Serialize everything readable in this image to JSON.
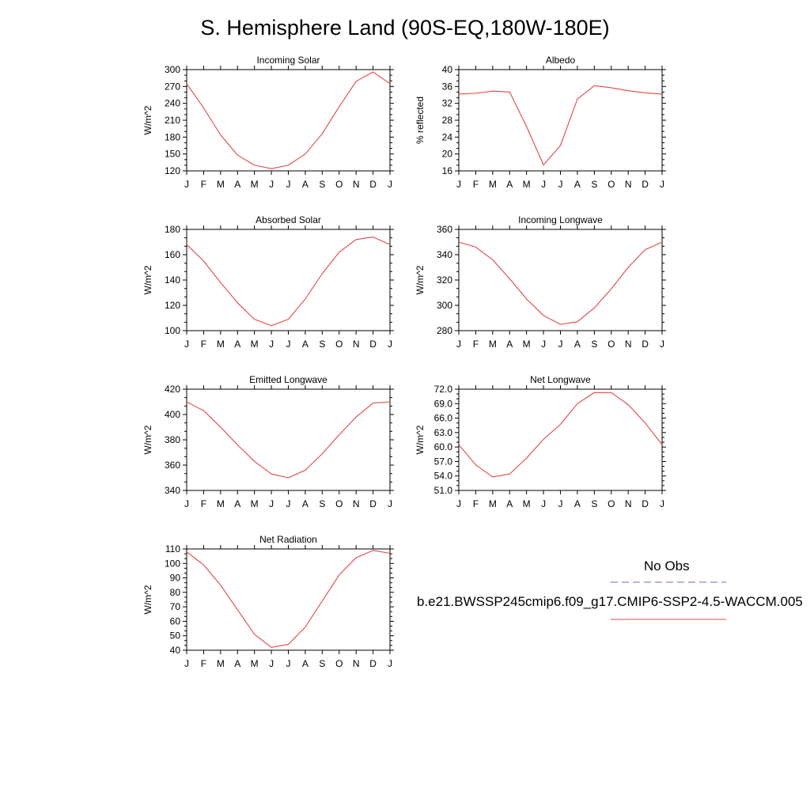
{
  "page": {
    "title": "S. Hemisphere Land (90S-EQ,180W-180E)"
  },
  "legend": {
    "obs_label": "No Obs",
    "obs_color": "#6b6bd8",
    "model_label": "b.e21.BWSSP245cmip6.f09_g17.CMIP6-SSP2-4.5-WACCM.005",
    "model_color": "#e04848"
  },
  "chart_data": [
    {
      "type": "line",
      "title": "Incoming Solar",
      "ylabel": "W/m^2",
      "x": [
        "J",
        "F",
        "M",
        "A",
        "M",
        "J",
        "J",
        "A",
        "S",
        "O",
        "N",
        "D",
        "J"
      ],
      "ylim": [
        120,
        300
      ],
      "yticks": [
        "120",
        "150",
        "180",
        "210",
        "240",
        "270",
        "300"
      ],
      "series": [
        {
          "values": [
            275,
            232,
            184,
            148,
            130,
            124,
            130,
            150,
            186,
            234,
            279,
            296,
            275
          ]
        }
      ]
    },
    {
      "type": "line",
      "title": "Albedo",
      "ylabel": "% reflected",
      "x": [
        "J",
        "F",
        "M",
        "A",
        "M",
        "J",
        "J",
        "A",
        "S",
        "O",
        "N",
        "D",
        "J"
      ],
      "ylim": [
        16,
        40
      ],
      "yticks": [
        "16",
        "20",
        "24",
        "28",
        "32",
        "36",
        "40"
      ],
      "series": [
        {
          "values": [
            34.2,
            34.4,
            34.9,
            34.7,
            26.5,
            17.4,
            22.0,
            33.0,
            36.2,
            35.7,
            35.0,
            34.5,
            34.2
          ]
        }
      ]
    },
    {
      "type": "line",
      "title": "Absorbed Solar",
      "ylabel": "W/m^2",
      "x": [
        "J",
        "F",
        "M",
        "A",
        "M",
        "J",
        "J",
        "A",
        "S",
        "O",
        "N",
        "D",
        "J"
      ],
      "ylim": [
        100,
        180
      ],
      "yticks": [
        "100",
        "120",
        "140",
        "160",
        "180"
      ],
      "series": [
        {
          "values": [
            168,
            155,
            138,
            122,
            109,
            104,
            109,
            125,
            145,
            162,
            172,
            174,
            168
          ]
        }
      ]
    },
    {
      "type": "line",
      "title": "Incoming Longwave",
      "ylabel": "W/m^2",
      "x": [
        "J",
        "F",
        "M",
        "A",
        "M",
        "J",
        "J",
        "A",
        "S",
        "O",
        "N",
        "D",
        "J"
      ],
      "ylim": [
        280,
        360
      ],
      "yticks": [
        "280",
        "300",
        "320",
        "340",
        "360"
      ],
      "series": [
        {
          "values": [
            350,
            346,
            336,
            321,
            305,
            292,
            285,
            287,
            298,
            313,
            330,
            344,
            350
          ]
        }
      ]
    },
    {
      "type": "line",
      "title": "Emitted Longwave",
      "ylabel": "W/m^2",
      "x": [
        "J",
        "F",
        "M",
        "A",
        "M",
        "J",
        "J",
        "A",
        "S",
        "O",
        "N",
        "D",
        "J"
      ],
      "ylim": [
        340,
        420
      ],
      "yticks": [
        "340",
        "360",
        "380",
        "400",
        "420"
      ],
      "series": [
        {
          "values": [
            410,
            403,
            390,
            376,
            363,
            353,
            350,
            356,
            369,
            384,
            398,
            409,
            410
          ]
        }
      ]
    },
    {
      "type": "line",
      "title": "Net Longwave",
      "ylabel": "W/m^2",
      "x": [
        "J",
        "F",
        "M",
        "A",
        "M",
        "J",
        "J",
        "A",
        "S",
        "O",
        "N",
        "D",
        "J"
      ],
      "ylim": [
        51,
        72
      ],
      "yticks": [
        "51.0",
        "54.0",
        "57.0",
        "60.0",
        "63.0",
        "66.0",
        "69.0",
        "72.0"
      ],
      "series": [
        {
          "values": [
            60.5,
            56.3,
            53.8,
            54.4,
            57.7,
            61.6,
            64.7,
            69.0,
            71.3,
            71.3,
            68.8,
            65.0,
            60.5
          ]
        }
      ]
    },
    {
      "type": "line",
      "title": "Net Radiation",
      "ylabel": "W/m^2",
      "x": [
        "J",
        "F",
        "M",
        "A",
        "M",
        "J",
        "J",
        "A",
        "S",
        "O",
        "N",
        "D",
        "J"
      ],
      "ylim": [
        40,
        110
      ],
      "yticks": [
        "40",
        "50",
        "60",
        "70",
        "80",
        "90",
        "100",
        "110"
      ],
      "series": [
        {
          "values": [
            108,
            99,
            85,
            68,
            51,
            42,
            44,
            56,
            74,
            92,
            104,
            109,
            107
          ]
        }
      ]
    }
  ]
}
